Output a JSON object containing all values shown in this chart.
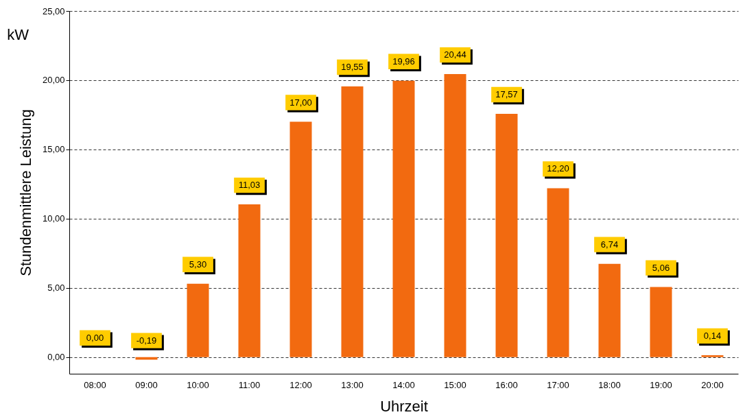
{
  "chart_data": {
    "type": "bar",
    "xlabel": "Uhrzeit",
    "ylabel": "Stundenmittlere Leistung",
    "annotations": [
      "kW"
    ],
    "categories": [
      "08:00",
      "09:00",
      "10:00",
      "11:00",
      "12:00",
      "13:00",
      "14:00",
      "15:00",
      "16:00",
      "17:00",
      "18:00",
      "19:00",
      "20:00"
    ],
    "values": [
      0.0,
      -0.19,
      5.3,
      11.03,
      17.0,
      19.55,
      19.96,
      20.44,
      17.57,
      12.2,
      6.74,
      5.06,
      0.14
    ],
    "value_labels": [
      "0,00",
      "-0,19",
      "5,30",
      "11,03",
      "17,00",
      "19,55",
      "19,96",
      "20,44",
      "17,57",
      "12,20",
      "6,74",
      "5,06",
      "0,14"
    ],
    "color": "#f26a10",
    "ylim": [
      -1.2,
      25
    ],
    "yticks": [
      {
        "value": 0,
        "label": "0,00"
      },
      {
        "value": 5,
        "label": "5,00"
      },
      {
        "value": 10,
        "label": "10,00"
      },
      {
        "value": 15,
        "label": "15,00"
      },
      {
        "value": 20,
        "label": "20,00"
      },
      {
        "value": 25,
        "label": "25,00"
      }
    ],
    "grid": "y"
  }
}
